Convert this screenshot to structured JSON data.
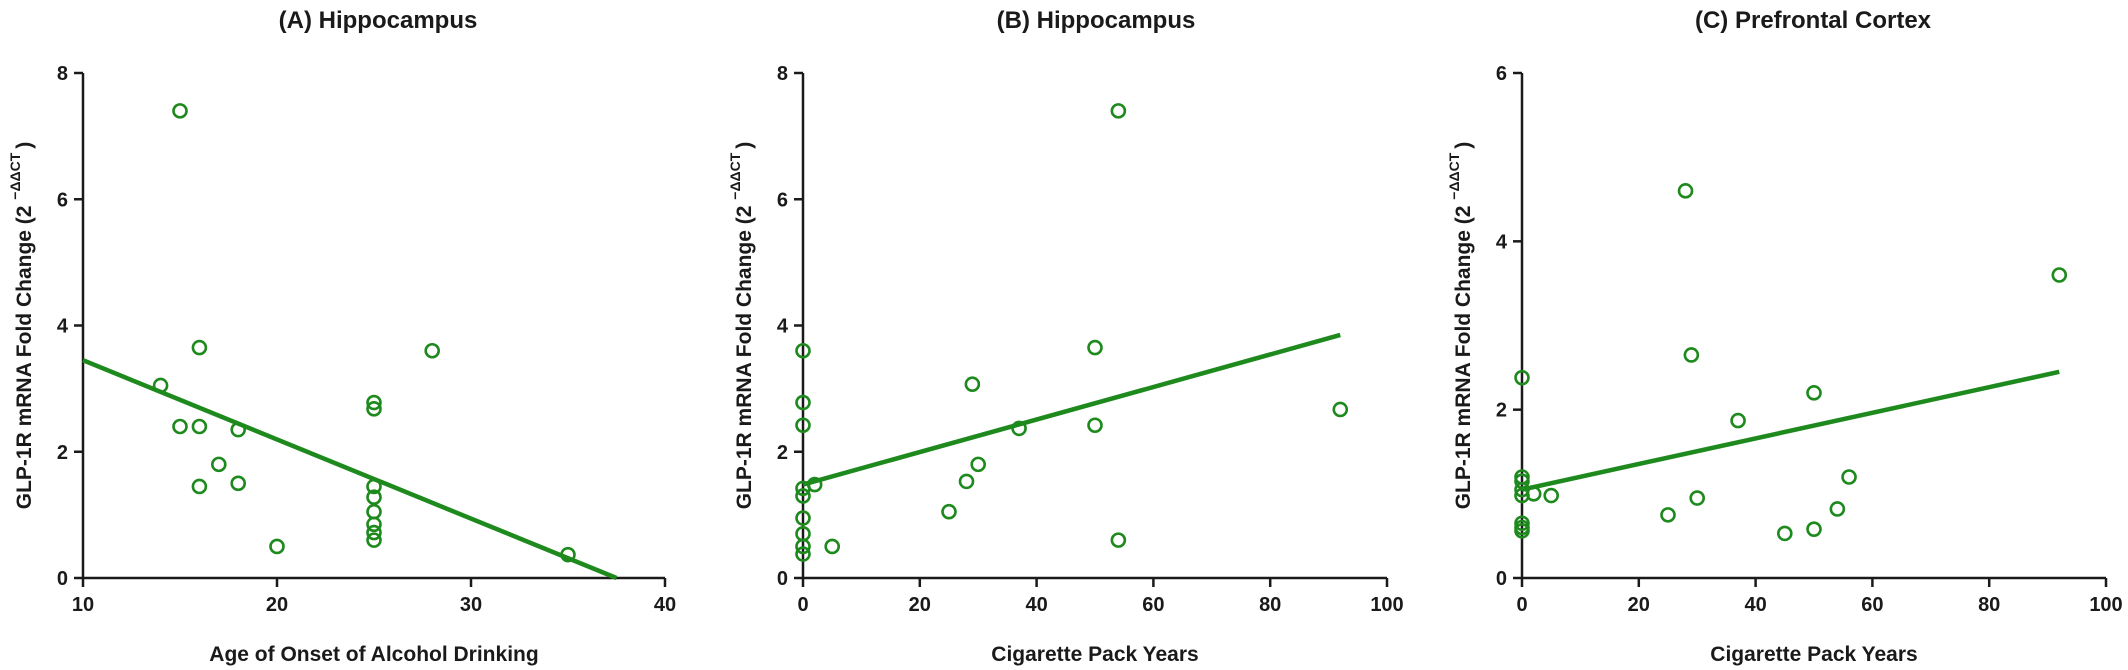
{
  "colors": {
    "series": "#1e8a1e",
    "axis": "#1a1a1a"
  },
  "chart_data": [
    {
      "type": "scatter",
      "title": "(A) Hippocampus",
      "xlabel": "Age of Onset of Alcohol Drinking",
      "ylabel": "GLP-1R mRNA Fold Change (2",
      "ylabel_superscript": "−ΔΔCT",
      "ylabel_close": ")",
      "xlim": [
        10,
        40
      ],
      "ylim": [
        0,
        8
      ],
      "xticks": [
        "10",
        "20",
        "30",
        "40"
      ],
      "yticks": [
        "0",
        "2",
        "4",
        "6",
        "8"
      ],
      "xtick_values": [
        10,
        20,
        30,
        40
      ],
      "ytick_values": [
        0,
        2,
        4,
        6,
        8
      ],
      "points": [
        [
          15,
          7.4
        ],
        [
          14,
          3.05
        ],
        [
          16,
          3.65
        ],
        [
          28,
          3.6
        ],
        [
          15,
          2.4
        ],
        [
          16,
          2.4
        ],
        [
          18,
          2.35
        ],
        [
          17,
          1.8
        ],
        [
          16,
          1.45
        ],
        [
          18,
          1.5
        ],
        [
          20,
          0.5
        ],
        [
          25,
          2.78
        ],
        [
          25,
          2.68
        ],
        [
          25,
          1.45
        ],
        [
          25,
          1.28
        ],
        [
          25,
          1.05
        ],
        [
          25,
          0.85
        ],
        [
          25,
          0.72
        ],
        [
          25,
          0.6
        ],
        [
          35,
          0.37
        ]
      ],
      "trendline": {
        "x": [
          10,
          37.5
        ],
        "y": [
          3.45,
          0.0
        ]
      }
    },
    {
      "type": "scatter",
      "title": "(B) Hippocampus",
      "xlabel": "Cigarette Pack Years",
      "ylabel": "GLP-1R mRNA Fold Change (2",
      "ylabel_superscript": "−ΔΔCT",
      "ylabel_close": ")",
      "xlim": [
        0,
        100
      ],
      "ylim": [
        0,
        8
      ],
      "xticks": [
        "0",
        "20",
        "40",
        "60",
        "80",
        "100"
      ],
      "yticks": [
        "0",
        "2",
        "4",
        "6",
        "8"
      ],
      "xtick_values": [
        0,
        20,
        40,
        60,
        80,
        100
      ],
      "ytick_values": [
        0,
        2,
        4,
        6,
        8
      ],
      "points": [
        [
          0,
          3.6
        ],
        [
          0,
          2.78
        ],
        [
          0,
          2.42
        ],
        [
          0,
          1.42
        ],
        [
          0,
          1.3
        ],
        [
          0,
          0.95
        ],
        [
          0,
          0.7
        ],
        [
          0,
          0.5
        ],
        [
          0,
          0.38
        ],
        [
          2,
          1.48
        ],
        [
          5,
          0.5
        ],
        [
          25,
          1.05
        ],
        [
          28,
          1.53
        ],
        [
          29,
          3.07
        ],
        [
          30,
          1.8
        ],
        [
          37,
          2.37
        ],
        [
          50,
          3.65
        ],
        [
          50,
          2.42
        ],
        [
          54,
          7.4
        ],
        [
          54,
          0.6
        ],
        [
          92,
          2.67
        ]
      ],
      "trendline": {
        "x": [
          0,
          92
        ],
        "y": [
          1.48,
          3.85
        ]
      }
    },
    {
      "type": "scatter",
      "title": "(C) Prefrontal Cortex",
      "xlabel": "Cigarette Pack Years",
      "ylabel": "GLP-1R mRNA Fold Change (2",
      "ylabel_superscript": "−ΔΔCT",
      "ylabel_close": ")",
      "xlim": [
        0,
        100
      ],
      "ylim": [
        0,
        6
      ],
      "xticks": [
        "0",
        "20",
        "40",
        "60",
        "80",
        "100"
      ],
      "yticks": [
        "0",
        "2",
        "4",
        "6"
      ],
      "xtick_values": [
        0,
        20,
        40,
        60,
        80,
        100
      ],
      "ytick_values": [
        0,
        2,
        4,
        6
      ],
      "points": [
        [
          0,
          2.38
        ],
        [
          0,
          1.2
        ],
        [
          0,
          1.15
        ],
        [
          0,
          1.05
        ],
        [
          0,
          0.98
        ],
        [
          0,
          0.65
        ],
        [
          0,
          0.6
        ],
        [
          0,
          0.56
        ],
        [
          2,
          1.0
        ],
        [
          5,
          0.98
        ],
        [
          25,
          0.75
        ],
        [
          28,
          4.6
        ],
        [
          29,
          2.65
        ],
        [
          30,
          0.95
        ],
        [
          37,
          1.87
        ],
        [
          45,
          0.53
        ],
        [
          50,
          2.2
        ],
        [
          50,
          0.58
        ],
        [
          54,
          0.82
        ],
        [
          56,
          1.2
        ],
        [
          92,
          3.6
        ]
      ],
      "trendline": {
        "x": [
          0,
          92
        ],
        "y": [
          1.05,
          2.45
        ]
      }
    }
  ]
}
